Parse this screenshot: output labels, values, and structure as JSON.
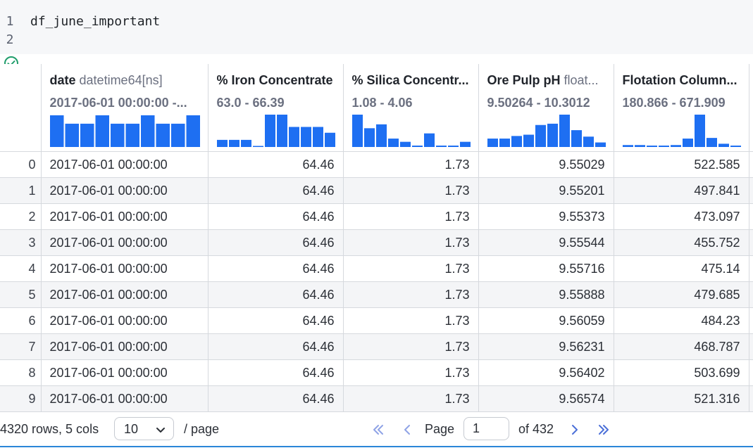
{
  "editor": {
    "lines": [
      {
        "number": "1",
        "code": "df_june_important"
      },
      {
        "number": "2",
        "code": ""
      }
    ]
  },
  "table": {
    "columns": [
      {
        "name": "date",
        "dtype": "datetime64[ns]",
        "range": "2017-06-01 00:00:00 -...",
        "histogram": [
          0.98,
          0.72,
          0.72,
          0.98,
          0.72,
          0.72,
          0.98,
          0.72,
          0.72,
          0.98
        ]
      },
      {
        "name": "% Iron Concentrate",
        "dtype": "",
        "range": "63.0 - 66.39",
        "histogram": [
          0.22,
          0.22,
          0.22,
          0.0,
          1.0,
          1.0,
          0.62,
          0.62,
          0.62,
          0.44
        ]
      },
      {
        "name": "% Silica Concentr...",
        "dtype": "",
        "range": "1.08 - 4.06",
        "histogram": [
          1.0,
          0.58,
          0.7,
          0.26,
          0.16,
          0.04,
          0.42,
          0.04,
          0.04,
          0.16
        ]
      },
      {
        "name": "Ore Pulp pH",
        "dtype": "float...",
        "range": "9.50264 - 10.3012",
        "histogram": [
          0.26,
          0.26,
          0.34,
          0.38,
          0.68,
          0.72,
          1.0,
          0.52,
          0.32,
          0.14
        ]
      },
      {
        "name": "Flotation Column...",
        "dtype": "",
        "range": "180.866 - 671.909",
        "histogram": [
          0.06,
          0.06,
          0.04,
          0.04,
          0.06,
          0.26,
          1.0,
          0.28,
          0.1,
          0.04
        ]
      }
    ],
    "rows": [
      {
        "index": "0",
        "values": [
          "2017-06-01 00:00:00",
          "64.46",
          "1.73",
          "9.55029",
          "522.585"
        ]
      },
      {
        "index": "1",
        "values": [
          "2017-06-01 00:00:00",
          "64.46",
          "1.73",
          "9.55201",
          "497.841"
        ]
      },
      {
        "index": "2",
        "values": [
          "2017-06-01 00:00:00",
          "64.46",
          "1.73",
          "9.55373",
          "473.097"
        ]
      },
      {
        "index": "3",
        "values": [
          "2017-06-01 00:00:00",
          "64.46",
          "1.73",
          "9.55544",
          "455.752"
        ]
      },
      {
        "index": "4",
        "values": [
          "2017-06-01 00:00:00",
          "64.46",
          "1.73",
          "9.55716",
          "475.14"
        ]
      },
      {
        "index": "5",
        "values": [
          "2017-06-01 00:00:00",
          "64.46",
          "1.73",
          "9.55888",
          "479.685"
        ]
      },
      {
        "index": "6",
        "values": [
          "2017-06-01 00:00:00",
          "64.46",
          "1.73",
          "9.56059",
          "484.23"
        ]
      },
      {
        "index": "7",
        "values": [
          "2017-06-01 00:00:00",
          "64.46",
          "1.73",
          "9.56231",
          "468.787"
        ]
      },
      {
        "index": "8",
        "values": [
          "2017-06-01 00:00:00",
          "64.46",
          "1.73",
          "9.56402",
          "503.699"
        ]
      },
      {
        "index": "9",
        "values": [
          "2017-06-01 00:00:00",
          "64.46",
          "1.73",
          "9.56574",
          "521.316"
        ]
      }
    ]
  },
  "footer": {
    "rows_count": "4320 rows, 5 cols",
    "page_size": "10",
    "per_page": "/ page",
    "page_label": "Page",
    "page_value": "1",
    "of_pages": "of 432"
  },
  "icons": {
    "run_status": "check-circle-icon",
    "first_page": "double-chevron-left-icon",
    "prev_page": "chevron-left-icon",
    "next_page": "chevron-right-icon",
    "last_page": "double-chevron-right-icon",
    "page_size_dropdown": "chevron-down-icon"
  },
  "colors": {
    "histogram_bar": "#1e6ff2",
    "success": "#1f9d6b",
    "nav_icon": "#4b6fd8",
    "cell_border": "#d6d9de",
    "zebra_row": "#f4f5f7",
    "editor_background": "#f6f7f9"
  }
}
